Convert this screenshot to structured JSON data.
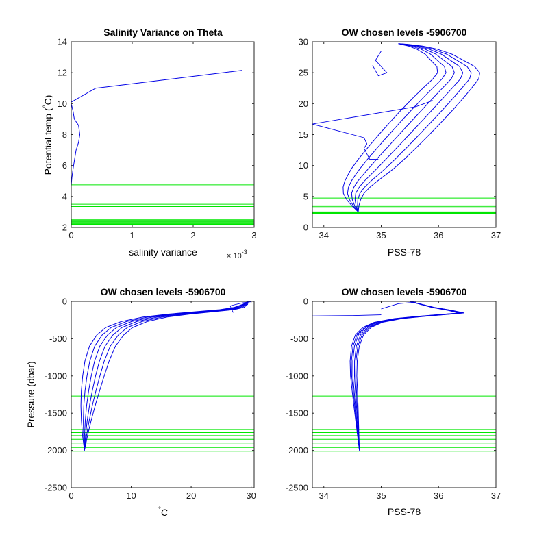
{
  "colors": {
    "profile": "#0000e6",
    "levels": "#00e600",
    "axis": "#262626"
  },
  "chart_data": [
    {
      "type": "line",
      "title": "Salinity Variance on Theta",
      "xlabel": "salinity variance",
      "ylabel": "Potential temp (°C)",
      "ylabel_main": "Potential temp (",
      "ylabel_deg": "°",
      "ylabel_unit": "C)",
      "x_exponent_base": "× 10",
      "x_exponent_power": "-3",
      "xlim": [
        0,
        3
      ],
      "ylim": [
        2,
        14
      ],
      "xticks": [
        0,
        1,
        2,
        3
      ],
      "yticks": [
        2,
        4,
        6,
        8,
        10,
        12,
        14
      ],
      "series": [
        {
          "values": [
            [
              2.8,
              12.15
            ],
            [
              0.4,
              11.0
            ],
            [
              0.0,
              10.1
            ],
            [
              0.0,
              10.0
            ],
            [
              0.03,
              9.5
            ],
            [
              0.05,
              9.0
            ],
            [
              0.12,
              8.6
            ],
            [
              0.14,
              8.0
            ],
            [
              0.12,
              7.5
            ],
            [
              0.08,
              7.0
            ],
            [
              0.05,
              6.3
            ],
            [
              0.03,
              5.8
            ],
            [
              0.01,
              5.2
            ],
            [
              0.0,
              4.7
            ],
            [
              0.0,
              2.1
            ]
          ]
        }
      ],
      "hlines": [
        4.75,
        3.5,
        3.35,
        2.5,
        2.45,
        2.4,
        2.35,
        2.3,
        2.25,
        2.2
      ]
    },
    {
      "type": "line",
      "title": "OW chosen levels -5906700",
      "xlabel": "PSS-78",
      "ylabel": "",
      "xlim": [
        33.8,
        37
      ],
      "ylim": [
        0,
        30
      ],
      "xticks": [
        34,
        35,
        36,
        37
      ],
      "yticks": [
        0,
        5,
        10,
        15,
        20,
        25,
        30
      ],
      "profile_band": {
        "offsets": [
          -0.5,
          -0.3,
          -0.1,
          0.1,
          0.3,
          0.5
        ]
      },
      "series": [
        {
          "values": [
            [
              34.6,
              2.5
            ],
            [
              34.55,
              3.5
            ],
            [
              34.52,
              4.5
            ],
            [
              34.52,
              5.5
            ],
            [
              34.57,
              6.5
            ],
            [
              34.65,
              7.5
            ],
            [
              34.75,
              8.5
            ],
            [
              34.85,
              9.5
            ],
            [
              35.0,
              11.0
            ],
            [
              35.2,
              13.0
            ],
            [
              35.4,
              15.0
            ],
            [
              35.6,
              17.0
            ],
            [
              35.8,
              19.0
            ],
            [
              36.0,
              21.0
            ],
            [
              36.15,
              22.5
            ],
            [
              36.3,
              24.0
            ],
            [
              36.35,
              25.0
            ],
            [
              36.3,
              26.0
            ],
            [
              36.15,
              27.0
            ],
            [
              36.0,
              28.0
            ],
            [
              35.8,
              28.8
            ],
            [
              35.6,
              29.3
            ],
            [
              35.4,
              29.6
            ],
            [
              35.3,
              29.7
            ]
          ]
        },
        {
          "values": [
            [
              33.8,
              16.7
            ],
            [
              34.5,
              15.0
            ],
            [
              34.7,
              14.5
            ],
            [
              34.75,
              13.5
            ],
            [
              34.7,
              12.8
            ],
            [
              34.8,
              11.0
            ],
            [
              34.95,
              11.0
            ]
          ]
        },
        {
          "values": [
            [
              33.8,
              16.7
            ],
            [
              35.6,
              19.5
            ],
            [
              35.9,
              20.5
            ]
          ]
        },
        {
          "values": [
            [
              34.85,
              26.2
            ],
            [
              34.95,
              24.5
            ],
            [
              35.1,
              25.0
            ],
            [
              34.9,
              27.0
            ],
            [
              35.0,
              28.5
            ]
          ]
        }
      ],
      "hlines": [
        4.75,
        3.5,
        3.35,
        2.5,
        2.45,
        2.4,
        2.35,
        2.3,
        2.25,
        2.2
      ]
    },
    {
      "type": "line",
      "title": "OW chosen levels -5906700",
      "xlabel": "°C",
      "xlabel_deg": "°",
      "xlabel_unit": "C",
      "ylabel": "Pressure (dbar)",
      "xlim": [
        0,
        30.5
      ],
      "ylim": [
        -2500,
        0
      ],
      "xticks": [
        0,
        10,
        20,
        30
      ],
      "yticks": [
        -2500,
        -2000,
        -1500,
        -1000,
        -500,
        0
      ],
      "profile_band": {
        "offsets": [
          -2.5,
          -1.5,
          -0.5,
          0.5,
          1.5,
          2.5
        ]
      },
      "series": [
        {
          "values": [
            [
              2.2,
              -2000
            ],
            [
              2.3,
              -1800
            ],
            [
              2.5,
              -1600
            ],
            [
              2.8,
              -1400
            ],
            [
              3.2,
              -1200
            ],
            [
              3.7,
              -1000
            ],
            [
              4.3,
              -800
            ],
            [
              5.2,
              -600
            ],
            [
              6.5,
              -450
            ],
            [
              8.0,
              -350
            ],
            [
              10.5,
              -270
            ],
            [
              14.0,
              -210
            ],
            [
              18.0,
              -170
            ],
            [
              22.0,
              -140
            ],
            [
              26.0,
              -110
            ],
            [
              28.0,
              -80
            ],
            [
              29.0,
              -40
            ],
            [
              29.5,
              0
            ]
          ]
        },
        {
          "values": [
            [
              27.0,
              -150
            ],
            [
              26.5,
              -60
            ],
            [
              28.5,
              -20
            ],
            [
              30.0,
              -5
            ]
          ]
        }
      ],
      "hlines": [
        -960,
        -1270,
        -1310,
        -1720,
        -1760,
        -1800,
        -1850,
        -1900,
        -1960,
        -2010
      ]
    },
    {
      "type": "line",
      "title": "OW chosen levels -5906700",
      "xlabel": "PSS-78",
      "ylabel": "",
      "xlim": [
        33.8,
        37
      ],
      "ylim": [
        -2500,
        0
      ],
      "xticks": [
        34,
        35,
        36,
        37
      ],
      "yticks": [
        -2500,
        -2000,
        -1500,
        -1000,
        -500,
        0
      ],
      "profile_band": {
        "offsets": [
          -0.08,
          -0.05,
          -0.02,
          0.02,
          0.05,
          0.08
        ]
      },
      "series": [
        {
          "values": [
            [
              34.62,
              -2000
            ],
            [
              34.6,
              -1800
            ],
            [
              34.58,
              -1600
            ],
            [
              34.56,
              -1400
            ],
            [
              34.54,
              -1200
            ],
            [
              34.52,
              -1000
            ],
            [
              34.52,
              -800
            ],
            [
              34.55,
              -600
            ],
            [
              34.62,
              -450
            ],
            [
              34.75,
              -350
            ],
            [
              34.95,
              -280
            ],
            [
              35.3,
              -230
            ],
            [
              35.7,
              -200
            ],
            [
              36.1,
              -175
            ],
            [
              36.4,
              -155
            ],
            [
              36.2,
              -120
            ],
            [
              35.9,
              -80
            ],
            [
              35.7,
              -40
            ],
            [
              35.5,
              0
            ]
          ]
        },
        {
          "values": [
            [
              33.8,
              -195
            ],
            [
              34.5,
              -190
            ],
            [
              35.0,
              -180
            ]
          ]
        },
        {
          "values": [
            [
              35.0,
              -100
            ],
            [
              35.3,
              -30
            ],
            [
              35.6,
              -10
            ]
          ]
        }
      ],
      "hlines": [
        -960,
        -1270,
        -1310,
        -1720,
        -1760,
        -1800,
        -1850,
        -1900,
        -1960,
        -2010
      ]
    }
  ]
}
